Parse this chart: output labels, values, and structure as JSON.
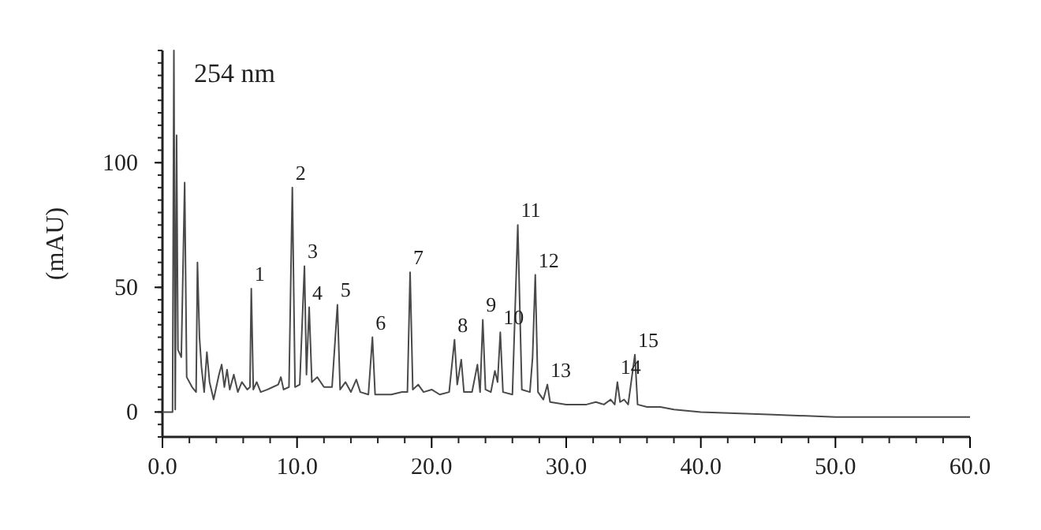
{
  "chart_data": {
    "type": "line",
    "ylabel": "(mAU)",
    "annotations": [
      "254 nm",
      {
        "text": "1",
        "x": 6.6,
        "y": 49.5
      },
      {
        "text": "2",
        "x": 9.65,
        "y": 90
      },
      {
        "text": "3",
        "x": 10.55,
        "y": 58.5
      },
      {
        "text": "4",
        "x": 10.9,
        "y": 42
      },
      {
        "text": "5",
        "x": 13.0,
        "y": 43
      },
      {
        "text": "6",
        "x": 15.6,
        "y": 30
      },
      {
        "text": "7",
        "x": 18.4,
        "y": 56
      },
      {
        "text": "8",
        "x": 21.7,
        "y": 29
      },
      {
        "text": "9",
        "x": 23.8,
        "y": 37
      },
      {
        "text": "10",
        "x": 25.1,
        "y": 32
      },
      {
        "text": "11",
        "x": 26.4,
        "y": 75
      },
      {
        "text": "12",
        "x": 27.7,
        "y": 55
      },
      {
        "text": "13",
        "x": 28.6,
        "y": 11
      },
      {
        "text": "14",
        "x": 33.8,
        "y": 12
      },
      {
        "text": "15",
        "x": 35.1,
        "y": 23
      }
    ],
    "series": [
      {
        "color": "#4a4a4a",
        "x": [
          0,
          0.75,
          0.85,
          0.95,
          1.05,
          1.15,
          1.4,
          1.65,
          1.8,
          2.2,
          2.5,
          2.6,
          2.75,
          2.9,
          3.1,
          3.3,
          3.5,
          3.8,
          4.2,
          4.4,
          4.6,
          4.8,
          5.0,
          5.3,
          5.6,
          5.9,
          6.3,
          6.5,
          6.6,
          6.75,
          7.0,
          7.3,
          7.8,
          8.2,
          8.6,
          8.8,
          9.0,
          9.4,
          9.65,
          9.85,
          10.2,
          10.55,
          10.7,
          10.9,
          11.1,
          11.5,
          12,
          12.6,
          13.0,
          13.2,
          13.6,
          14,
          14.4,
          14.7,
          15.3,
          15.6,
          15.8,
          17,
          17.8,
          18.2,
          18.4,
          18.6,
          19,
          19.4,
          20,
          20.6,
          21.3,
          21.7,
          21.9,
          22.2,
          22.4,
          23.0,
          23.4,
          23.6,
          23.8,
          24.0,
          24.4,
          24.7,
          24.9,
          25.1,
          25.3,
          26.0,
          26.4,
          26.7,
          27.3,
          27.5,
          27.7,
          27.9,
          28.3,
          28.6,
          28.8,
          30,
          31.5,
          32.2,
          32.8,
          33.3,
          33.6,
          33.8,
          34.0,
          34.3,
          34.6,
          35.1,
          35.3,
          36,
          37,
          38,
          40,
          45,
          50,
          55,
          60
        ],
        "values": [
          0,
          0,
          145,
          1,
          111,
          25,
          22,
          92,
          14,
          10,
          8,
          60,
          30,
          18,
          8,
          24,
          12,
          5,
          15,
          19,
          10,
          17,
          9,
          15,
          8,
          12,
          9,
          10,
          49.5,
          9,
          12,
          8,
          9,
          10,
          11,
          14,
          9,
          10,
          90,
          10,
          11,
          58.5,
          15,
          42,
          12,
          14,
          10,
          10,
          43,
          9,
          12,
          8,
          13,
          8,
          7,
          30,
          7,
          7,
          8,
          8,
          56,
          9,
          11,
          8,
          9,
          7,
          8,
          29,
          11,
          21,
          8,
          8,
          19,
          8,
          37,
          9,
          8,
          16.5,
          12,
          32,
          8,
          7,
          75,
          9,
          8,
          22,
          55,
          8,
          5,
          11,
          4,
          3,
          3,
          4,
          3,
          5,
          3,
          12,
          4,
          5,
          3,
          23,
          3,
          2,
          2,
          1,
          0,
          -1,
          -2,
          -2,
          -2
        ]
      }
    ],
    "xlim": [
      0,
      60
    ],
    "xticks": [
      {
        "value": 0,
        "label": "0.0"
      },
      {
        "value": 10,
        "label": "10.0"
      },
      {
        "value": 20,
        "label": "20.0"
      },
      {
        "value": 30,
        "label": "30.0"
      },
      {
        "value": 40,
        "label": "40.0"
      },
      {
        "value": 50,
        "label": "50.0"
      },
      {
        "value": 60,
        "label": "60.0"
      }
    ],
    "ylim": [
      -10,
      145
    ],
    "yticks": [
      0,
      50,
      100
    ],
    "marker": "none",
    "line_style": "solid",
    "grid": false
  }
}
